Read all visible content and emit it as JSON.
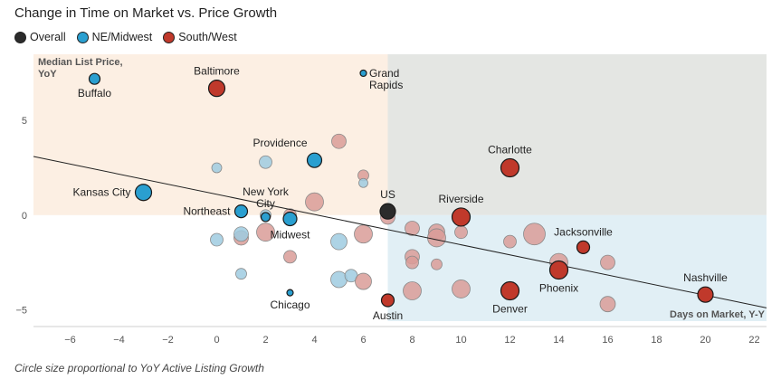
{
  "title": "Change in Time on Market vs. Price Growth",
  "footer": "Circle size proportional to YoY Active Listing Growth",
  "legend": [
    {
      "label": "Overall",
      "color": "#2b2b2b"
    },
    {
      "label": "NE/Midwest",
      "color": "#2a9fd0"
    },
    {
      "label": "South/West",
      "color": "#c0392b"
    }
  ],
  "chart_data": {
    "type": "scatter",
    "title": "Change in Time on Market vs. Price Growth",
    "xlabel": "Days on Market, Y-Y",
    "ylabel": "Median List Price, YoY",
    "xlim": [
      -7.5,
      22.5
    ],
    "ylim": [
      -5.6,
      8.5
    ],
    "xticks": [
      -6,
      -4,
      -2,
      0,
      2,
      4,
      6,
      8,
      10,
      12,
      14,
      16,
      18,
      20,
      22
    ],
    "yticks": [
      -5,
      0,
      5
    ],
    "grid": false,
    "trendline": {
      "x1": -7.5,
      "y1": 3.1,
      "x2": 22.5,
      "y2": -4.9
    },
    "regions": [
      {
        "name": "upper-left",
        "color": "#fcefe3"
      },
      {
        "name": "upper-right",
        "color": "#e4e6e3"
      },
      {
        "name": "lower-right",
        "color": "#e1eff5"
      }
    ],
    "colors": {
      "overall": "#2b2b2b",
      "ne_midwest": "#2a9fd0",
      "south_west": "#c0392b",
      "ne_midwest_faded": "#9fcbe0",
      "south_west_faded": "#d99c98"
    },
    "highlighted": [
      {
        "label": "Baltimore",
        "group": "south_west",
        "x": 0,
        "y": 6.7,
        "size": 9,
        "label_pos": "above"
      },
      {
        "label": "Buffalo",
        "group": "ne_midwest",
        "x": -5,
        "y": 7.2,
        "size": 6,
        "label_pos": "below"
      },
      {
        "label": "Grand Rapids",
        "lines": [
          "Grand",
          "Rapids"
        ],
        "group": "ne_midwest",
        "x": 6,
        "y": 7.5,
        "size": 3.5,
        "label_pos": "right"
      },
      {
        "label": "Providence",
        "group": "ne_midwest",
        "x": 4,
        "y": 2.9,
        "size": 8,
        "label_pos": "above-left"
      },
      {
        "label": "Charlotte",
        "group": "south_west",
        "x": 12,
        "y": 2.5,
        "size": 10,
        "label_pos": "above"
      },
      {
        "label": "Kansas City",
        "group": "ne_midwest",
        "x": -3,
        "y": 1.2,
        "size": 9,
        "label_pos": "left"
      },
      {
        "label": "New York City",
        "lines": [
          "New York",
          "City"
        ],
        "group": "ne_midwest",
        "x": 2,
        "y": -0.1,
        "size": 5,
        "label_pos": "above"
      },
      {
        "label": "Northeast",
        "group": "ne_midwest",
        "x": 1,
        "y": 0.2,
        "size": 7,
        "label_pos": "left"
      },
      {
        "label": "Midwest",
        "group": "ne_midwest",
        "x": 3,
        "y": -0.2,
        "size": 7.5,
        "label_pos": "below"
      },
      {
        "label": "US",
        "group": "overall",
        "x": 7,
        "y": 0.2,
        "size": 8.5,
        "label_pos": "above"
      },
      {
        "label": "Riverside",
        "group": "south_west",
        "x": 10,
        "y": -0.1,
        "size": 10,
        "label_pos": "above"
      },
      {
        "label": "Jacksonville",
        "group": "south_west",
        "x": 15,
        "y": -1.7,
        "size": 7,
        "label_pos": "above"
      },
      {
        "label": "Phoenix",
        "group": "south_west",
        "x": 14,
        "y": -2.9,
        "size": 10,
        "label_pos": "below-right"
      },
      {
        "label": "Denver",
        "group": "south_west",
        "x": 12,
        "y": -4.0,
        "size": 10,
        "label_pos": "below"
      },
      {
        "label": "Nashville",
        "group": "south_west",
        "x": 20,
        "y": -4.2,
        "size": 8.5,
        "label_pos": "above"
      },
      {
        "label": "Austin",
        "group": "south_west",
        "x": 7,
        "y": -4.5,
        "size": 7,
        "label_pos": "below"
      },
      {
        "label": "Chicago",
        "group": "ne_midwest",
        "x": 3,
        "y": -4.1,
        "size": 3.5,
        "label_pos": "below"
      }
    ],
    "others": [
      {
        "group": "south_west",
        "x": 5,
        "y": 3.9,
        "size": 8
      },
      {
        "group": "south_west",
        "x": 6,
        "y": 2.1,
        "size": 6
      },
      {
        "group": "ne_midwest",
        "x": 6,
        "y": 1.7,
        "size": 5
      },
      {
        "group": "ne_midwest",
        "x": 0,
        "y": 2.5,
        "size": 5.5
      },
      {
        "group": "ne_midwest",
        "x": 2,
        "y": 2.8,
        "size": 7
      },
      {
        "group": "south_west",
        "x": 4,
        "y": 0.7,
        "size": 10
      },
      {
        "group": "south_west",
        "x": 2,
        "y": -0.9,
        "size": 10
      },
      {
        "group": "south_west",
        "x": 1,
        "y": -1.2,
        "size": 8
      },
      {
        "group": "ne_midwest",
        "x": 1,
        "y": -1.0,
        "size": 8
      },
      {
        "group": "ne_midwest",
        "x": 0,
        "y": -1.3,
        "size": 7
      },
      {
        "group": "ne_midwest",
        "x": 2,
        "y": 0.0,
        "size": 6
      },
      {
        "group": "south_west",
        "x": 3,
        "y": 0.0,
        "size": 7
      },
      {
        "group": "south_west",
        "x": 3,
        "y": -2.2,
        "size": 7
      },
      {
        "group": "ne_midwest",
        "x": 1,
        "y": -3.1,
        "size": 6
      },
      {
        "group": "ne_midwest",
        "x": 5,
        "y": -1.4,
        "size": 9
      },
      {
        "group": "south_west",
        "x": 6,
        "y": -1.0,
        "size": 10
      },
      {
        "group": "ne_midwest",
        "x": 5,
        "y": -3.4,
        "size": 9
      },
      {
        "group": "ne_midwest",
        "x": 5.5,
        "y": -3.2,
        "size": 7
      },
      {
        "group": "south_west",
        "x": 6,
        "y": -3.5,
        "size": 9
      },
      {
        "group": "south_west",
        "x": 7,
        "y": -0.1,
        "size": 8
      },
      {
        "group": "south_west",
        "x": 8,
        "y": -0.7,
        "size": 8
      },
      {
        "group": "south_west",
        "x": 8,
        "y": -2.2,
        "size": 8
      },
      {
        "group": "south_west",
        "x": 8,
        "y": -2.5,
        "size": 7
      },
      {
        "group": "south_west",
        "x": 8,
        "y": -4.0,
        "size": 10
      },
      {
        "group": "south_west",
        "x": 9,
        "y": -0.9,
        "size": 9
      },
      {
        "group": "south_west",
        "x": 9,
        "y": -1.2,
        "size": 10
      },
      {
        "group": "south_west",
        "x": 9,
        "y": -2.6,
        "size": 6
      },
      {
        "group": "south_west",
        "x": 10,
        "y": -0.9,
        "size": 7
      },
      {
        "group": "south_west",
        "x": 10,
        "y": -3.9,
        "size": 10
      },
      {
        "group": "south_west",
        "x": 12,
        "y": -1.4,
        "size": 7
      },
      {
        "group": "south_west",
        "x": 13,
        "y": -1.0,
        "size": 12
      },
      {
        "group": "south_west",
        "x": 14,
        "y": -2.5,
        "size": 10
      },
      {
        "group": "south_west",
        "x": 16,
        "y": -2.5,
        "size": 8
      },
      {
        "group": "south_west",
        "x": 16,
        "y": -4.7,
        "size": 8.5
      }
    ]
  }
}
